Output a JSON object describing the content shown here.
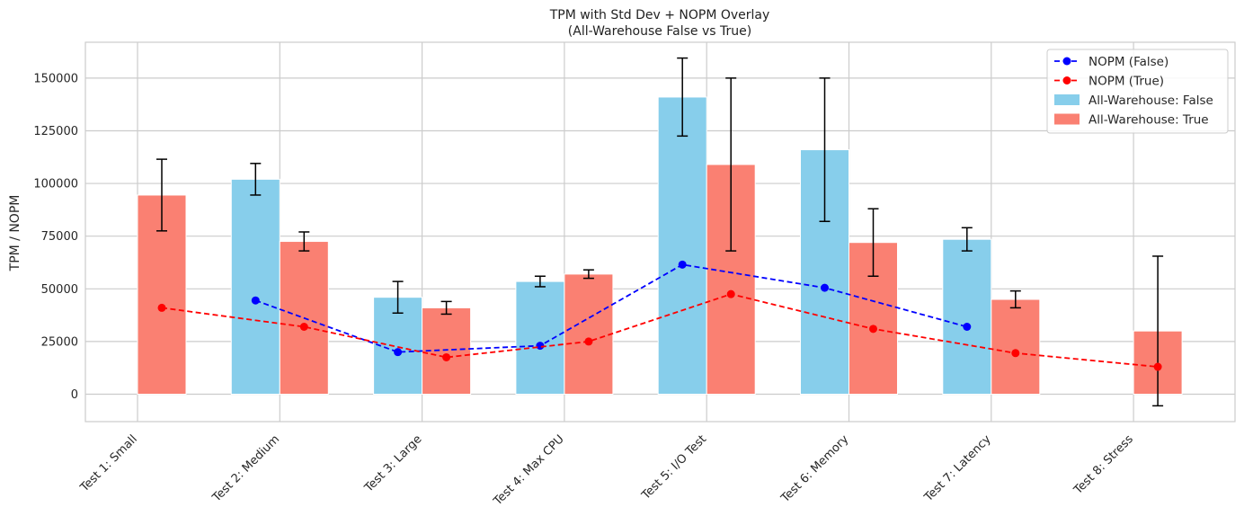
{
  "chart_data": {
    "type": "bar",
    "title": "TPM with Std Dev + NOPM Overlay",
    "subtitle": "(All-Warehouse False vs True)",
    "xlabel": "",
    "ylabel": "TPM / NOPM",
    "ylim": [
      -13000,
      167000
    ],
    "yticks": [
      0,
      25000,
      50000,
      75000,
      100000,
      125000,
      150000
    ],
    "ytick_labels": [
      "0",
      "25000",
      "50000",
      "75000",
      "100000",
      "125000",
      "150000"
    ],
    "grid": true,
    "legend_position": "top-right",
    "categories": [
      "Test 1: Small",
      "Test 2: Medium",
      "Test 3: Large",
      "Test 4: Max CPU",
      "Test 5: I/O Test",
      "Test 6: Memory",
      "Test 7: Latency",
      "Test 8: Stress"
    ],
    "series": [
      {
        "name": "All-Warehouse: False",
        "kind": "bar",
        "color": "#87ceeb",
        "values": [
          null,
          102000,
          46000,
          53500,
          141000,
          116000,
          73500,
          null
        ],
        "std": [
          null,
          7500,
          7500,
          2500,
          18500,
          34000,
          5500,
          null
        ]
      },
      {
        "name": "All-Warehouse: True",
        "kind": "bar",
        "color": "#fa8072",
        "values": [
          94500,
          72500,
          41000,
          57000,
          109000,
          72000,
          45000,
          30000
        ],
        "std": [
          17000,
          4500,
          3000,
          2000,
          41000,
          16000,
          4000,
          35500
        ]
      },
      {
        "name": "NOPM (False)",
        "kind": "line",
        "color": "#0000ff",
        "values": [
          null,
          44500,
          20000,
          23000,
          61500,
          50500,
          32000,
          null
        ]
      },
      {
        "name": "NOPM (True)",
        "kind": "line",
        "color": "#ff0000",
        "values": [
          41000,
          32000,
          17500,
          25000,
          47500,
          31000,
          19500,
          13000
        ]
      }
    ]
  }
}
